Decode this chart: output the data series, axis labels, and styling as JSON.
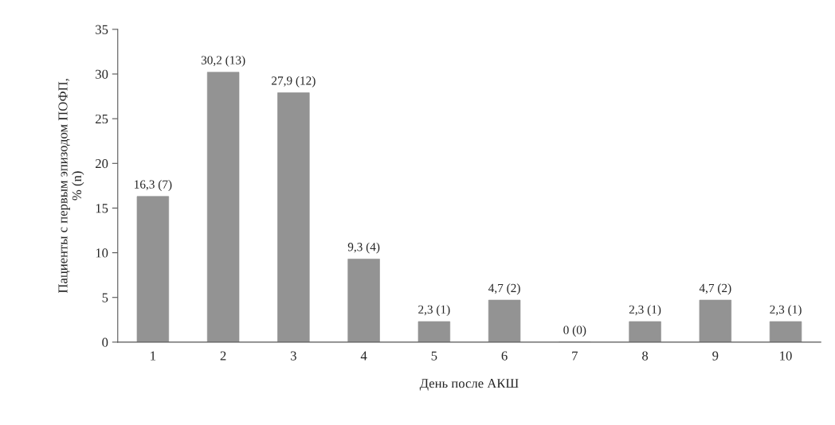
{
  "chart_data": {
    "type": "bar",
    "xlabel": "День после АКШ",
    "ylabel": "Пациенты с первым эпизодом ПОФП,\n% (n)",
    "categories": [
      "1",
      "2",
      "3",
      "4",
      "5",
      "6",
      "7",
      "8",
      "9",
      "10"
    ],
    "values": [
      16.3,
      30.2,
      27.9,
      9.3,
      2.3,
      4.7,
      0,
      2.3,
      4.7,
      2.3
    ],
    "value_labels": [
      "16,3 (7)",
      "30,2 (13)",
      "27,9 (12)",
      "9,3 (4)",
      "2,3 (1)",
      "4,7 (2)",
      "0 (0)",
      "2,3 (1)",
      "4,7 (2)",
      "2,3 (1)"
    ],
    "color": "#939393",
    "ylim": [
      0,
      35
    ],
    "yticks": [
      0,
      5,
      10,
      15,
      20,
      25,
      30,
      35
    ],
    "grid": false,
    "legend": false
  }
}
